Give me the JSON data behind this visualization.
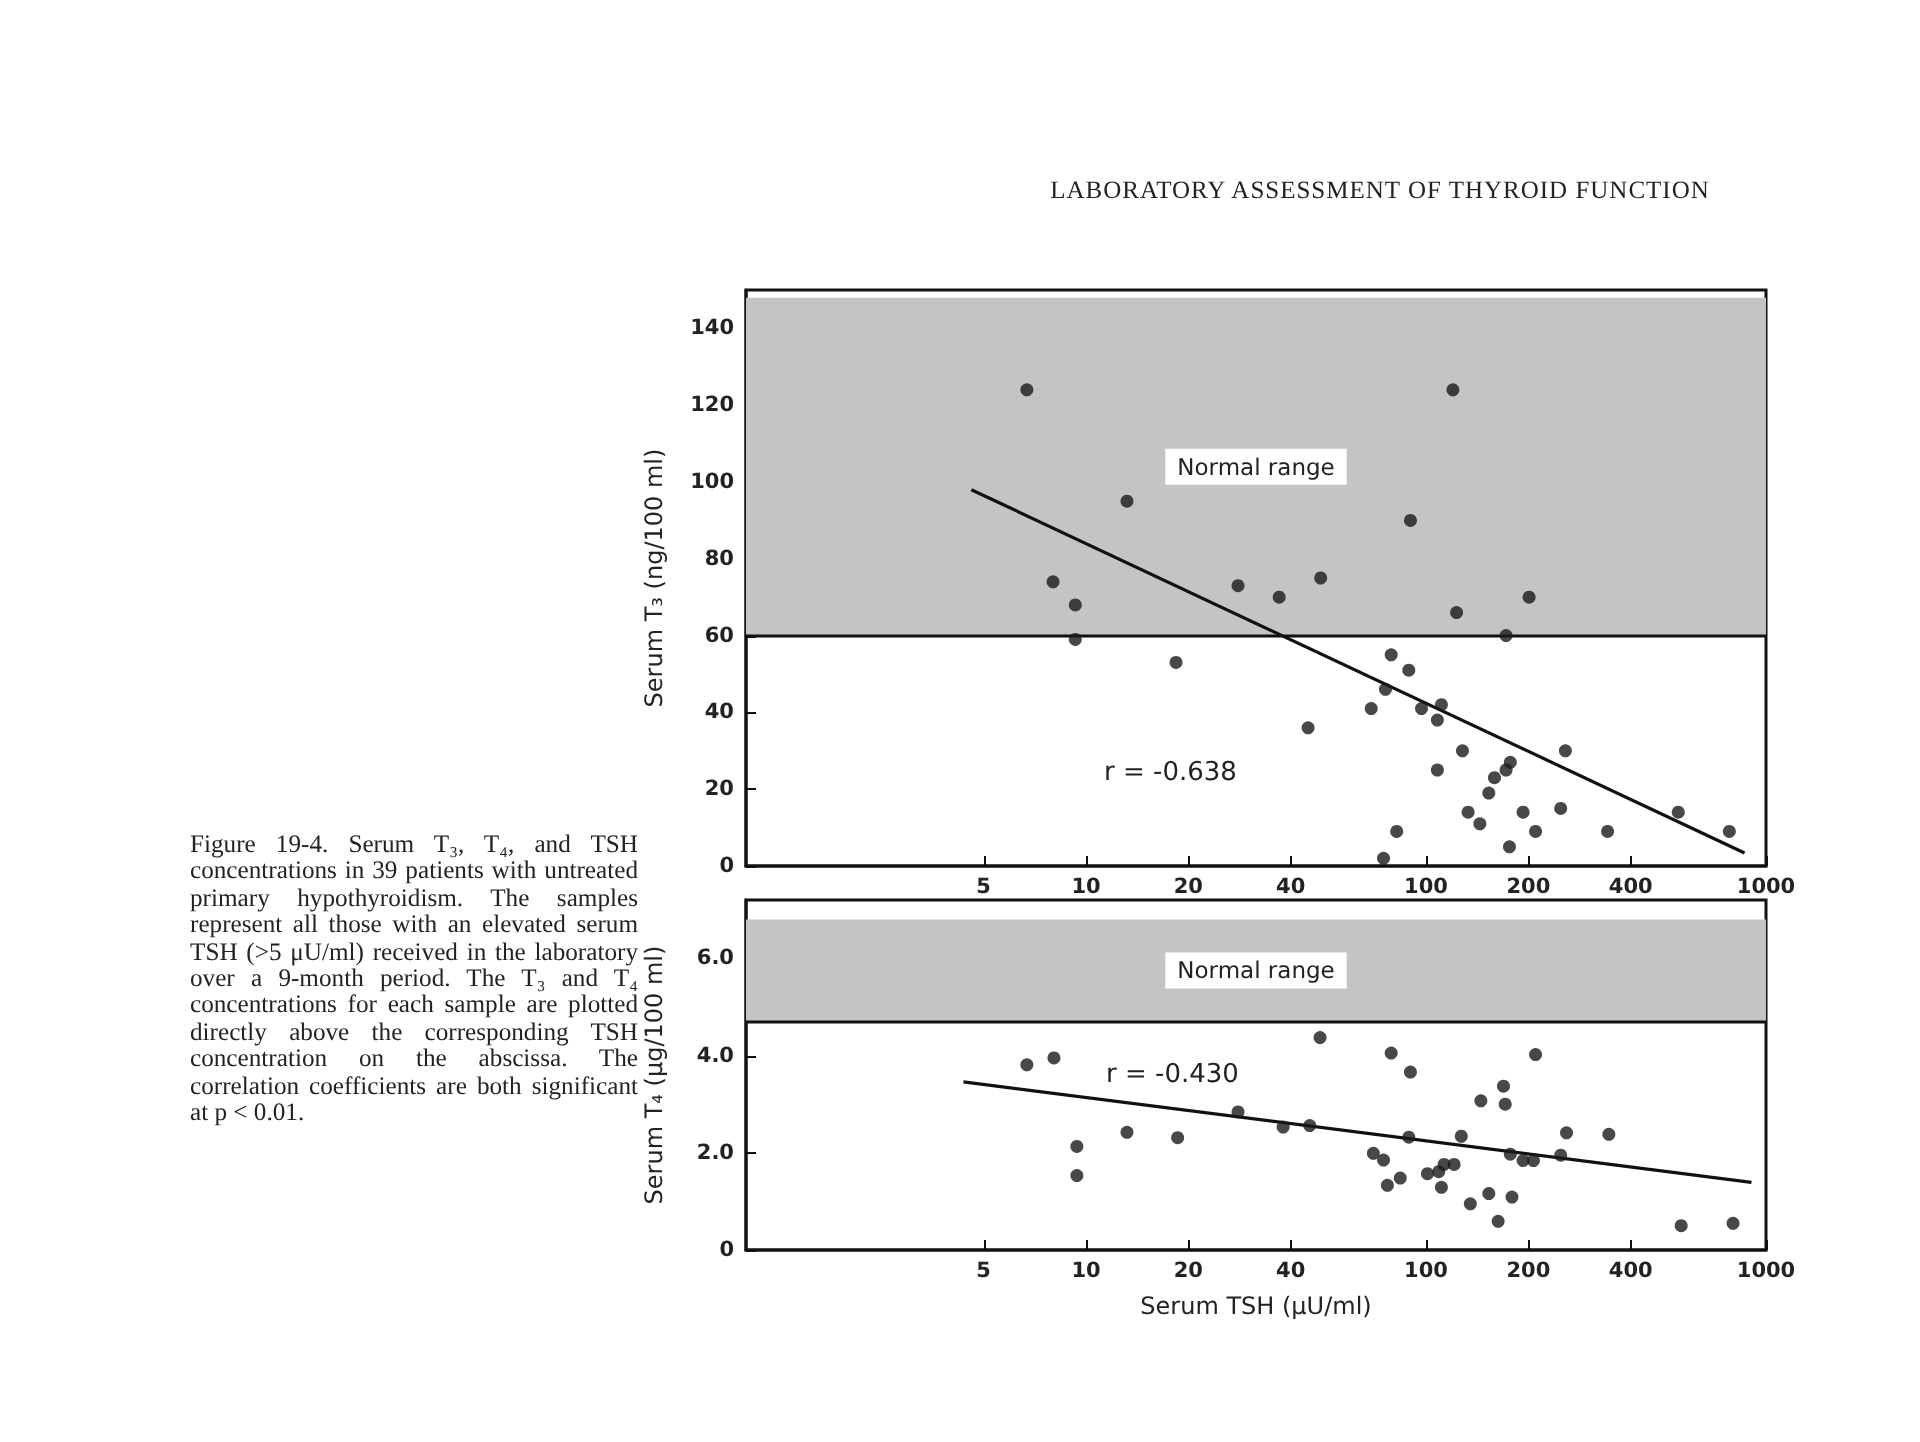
{
  "chart_data": [
    {
      "type": "scatter",
      "title": "LABORATORY ASSESSMENT OF THYROID FUNCTION",
      "ylabel": "Serum T₃ (ng/100 ml)",
      "log": "x",
      "xlim": [
        1,
        1000
      ],
      "xticks": [
        5,
        10,
        20,
        40,
        100,
        200,
        400,
        1000
      ],
      "ylim": [
        0,
        150
      ],
      "yticks": [
        0,
        20,
        40,
        60,
        80,
        100,
        120,
        140
      ],
      "grid": false,
      "marker": "circle",
      "annotations": [
        "r = -0.638",
        "Figure 19-4. Serum T₃, T₄, and TSH concentrations in 39 patients with untreated primary hypothyroidism. The samples represent all those with an elevated serum TSH (>5 μU/ml) received in the laboratory over a 9-month period. The T₃ and T₄ concentrations for each sample are plotted directly above the corresponding TSH concentration on the abscissa. The correlation coefficients are both significant at p < 0.01."
      ],
      "bands": [
        {
          "axis": "y",
          "from": 60,
          "to": 148,
          "label": "Normal range",
          "color": "#c4c4c4"
        }
      ],
      "ref_lines": [
        {
          "axis": "y",
          "value": 60,
          "color": "#111111"
        }
      ],
      "series": [
        {
          "color": "#1a1a1a",
          "x": [
            6.7,
            13.2,
            8.0,
            9.3,
            9.3,
            18.4,
            28,
            37,
            49,
            90,
            120,
            123,
            201,
            172,
            79,
            89,
            76,
            69,
            45,
            97,
            111,
            108,
            108,
            128,
            177,
            172,
            159,
            153,
            257,
            249,
            133,
            193,
            144,
            210,
            82,
            342,
            552,
            780,
            176,
            75
          ],
          "values": [
            124,
            95,
            74,
            68,
            59,
            53,
            73,
            70,
            75,
            90,
            124,
            66,
            70,
            60,
            55,
            51,
            46,
            41,
            36,
            41,
            42,
            38,
            25,
            30,
            27,
            25,
            23,
            19,
            30,
            15,
            14,
            14,
            11,
            9,
            9,
            9,
            14,
            9,
            5,
            2
          ]
        },
        {
          "type": "line",
          "color": "#111111",
          "marker": "none",
          "x": [
            4.6,
            865
          ],
          "values": [
            98,
            3.4
          ]
        }
      ]
    },
    {
      "type": "scatter",
      "ylabel": "Serum T₄ (μg/100 ml)",
      "xlabel": "Serum TSH (μU/ml)",
      "log": "x",
      "xlim": [
        1,
        1000
      ],
      "xticks": [
        5,
        10,
        20,
        40,
        100,
        200,
        400,
        1000
      ],
      "ylim": [
        0,
        7.2
      ],
      "yticks": [
        0,
        {
          "value": 2,
          "label": "2.0"
        },
        {
          "value": 4,
          "label": "4.0"
        },
        {
          "value": 6,
          "label": "6.0"
        }
      ],
      "grid": false,
      "marker": "circle",
      "annotations": [
        "r = -0.430"
      ],
      "bands": [
        {
          "axis": "y",
          "from": 4.7,
          "to": 6.8,
          "label": "Normal range",
          "color": "#c4c4c4"
        }
      ],
      "ref_lines": [
        {
          "axis": "y",
          "value": 4.7,
          "color": "#111111"
        }
      ],
      "series": [
        {
          "color": "#1a1a1a",
          "x": [
            6.7,
            8.05,
            9.4,
            9.4,
            13.2,
            18.6,
            28,
            38,
            45.5,
            48.8,
            79,
            90,
            89,
            70,
            75,
            77,
            84,
            101,
            109,
            113,
            121,
            111,
            127,
            145,
            169,
            171,
            177,
            193,
            207,
            210,
            249,
            259,
            345,
            135,
            153,
            179,
            163,
            563,
            800
          ],
          "values": [
            3.81,
            3.95,
            2.13,
            1.53,
            2.42,
            2.31,
            2.84,
            2.53,
            2.56,
            4.37,
            4.05,
            3.66,
            2.32,
            1.99,
            1.85,
            1.33,
            1.48,
            1.57,
            1.61,
            1.76,
            1.76,
            1.29,
            2.34,
            3.07,
            3.37,
            3.0,
            1.97,
            1.84,
            1.84,
            4.02,
            1.95,
            2.41,
            2.38,
            0.95,
            1.16,
            1.09,
            0.59,
            0.5,
            0.55
          ]
        },
        {
          "type": "line",
          "color": "#111111",
          "marker": "none",
          "x": [
            4.36,
            906
          ],
          "values": [
            3.46,
            1.39
          ]
        }
      ]
    }
  ]
}
